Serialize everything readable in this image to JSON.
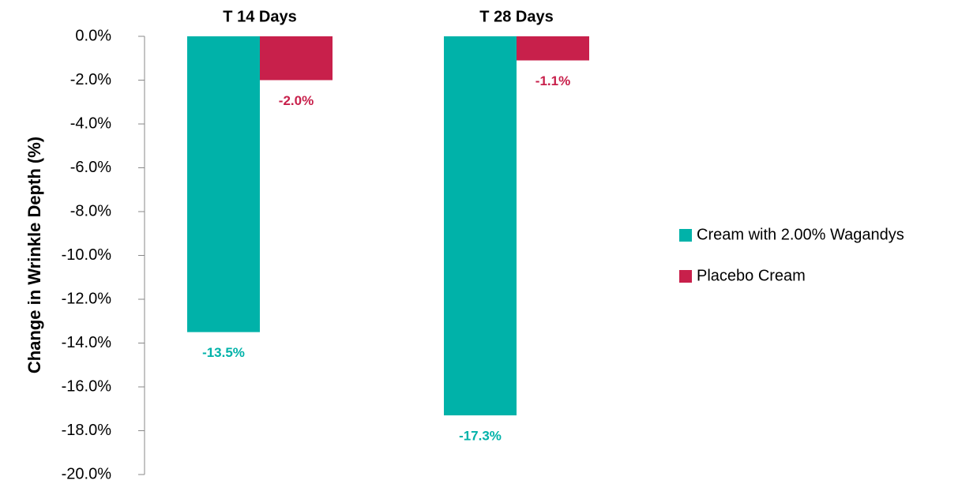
{
  "chart_data": {
    "type": "bar",
    "y_axis_label": "Change in Wrinkle Depth (%)",
    "categories": [
      "T 14 Days",
      "T 28 Days"
    ],
    "series": [
      {
        "name": "Cream with 2.00% Wagandys",
        "color": "#00b2a9",
        "values": [
          -13.5,
          -17.3
        ],
        "value_labels": [
          "-13.5%",
          "-17.3%"
        ]
      },
      {
        "name": "Placebo Cream",
        "color": "#c8204b",
        "values": [
          -2.0,
          -1.1
        ],
        "value_labels": [
          "-2.0%",
          "-1.1%"
        ]
      }
    ],
    "ylim": [
      -20,
      0
    ],
    "yticks": [
      {
        "value": 0,
        "label": "0.0%"
      },
      {
        "value": -2,
        "label": "-2.0%"
      },
      {
        "value": -4,
        "label": "-4.0%"
      },
      {
        "value": -6,
        "label": "-6.0%"
      },
      {
        "value": -8,
        "label": "-8.0%"
      },
      {
        "value": -10,
        "label": "-10.0%"
      },
      {
        "value": -12,
        "label": "-12.0%"
      },
      {
        "value": -14,
        "label": "-14.0%"
      },
      {
        "value": -16,
        "label": "-16.0%"
      },
      {
        "value": -18,
        "label": "-18.0%"
      },
      {
        "value": -20,
        "label": "-20.0%"
      }
    ],
    "grid": false,
    "legend": "right"
  }
}
